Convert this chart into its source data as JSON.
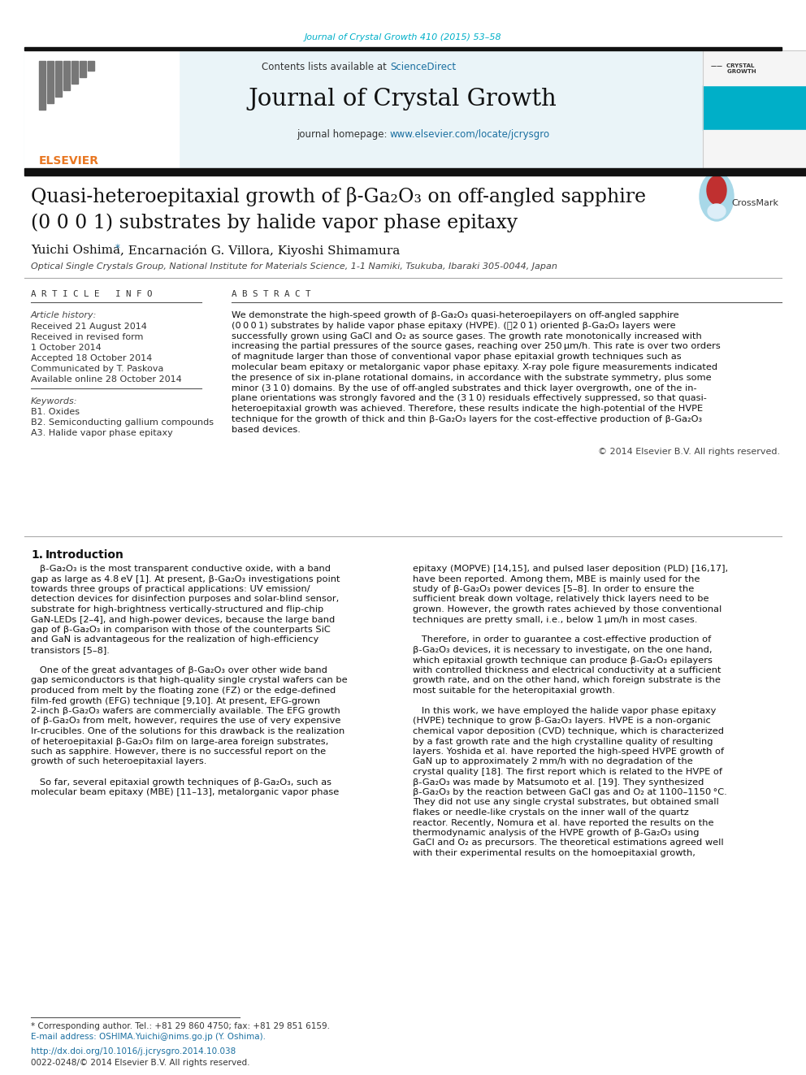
{
  "journal_citation": "Journal of Crystal Growth 410 (2015) 53–58",
  "journal_name": "Journal of Crystal Growth",
  "contents_line": "Contents lists available at ",
  "sciencedirect": "ScienceDirect",
  "journal_homepage_label": "journal homepage: ",
  "journal_url": "www.elsevier.com/locate/jcrysgro",
  "title_line1": "Quasi-heteroepitaxial growth of β-Ga₂O₃ on off-angled sapphire",
  "title_line2": "(0 0 0 1) substrates by halide vapor phase epitaxy",
  "authors_pre": "Yuichi Oshima",
  "authors_post": ", Encarnación G. Villora, Kiyoshi Shimamura",
  "affiliation": "Optical Single Crystals Group, National Institute for Materials Science, 1-1 Namiki, Tsukuba, Ibaraki 305-0044, Japan",
  "article_info_header": "A R T I C L E   I N F O",
  "abstract_header": "A B S T R A C T",
  "article_history_label": "Article history:",
  "received": "Received 21 August 2014",
  "revised": "Received in revised form",
  "revised_date": "1 October 2014",
  "accepted": "Accepted 18 October 2014",
  "communicated": "Communicated by T. Paskova",
  "available": "Available online 28 October 2014",
  "keywords_label": "Keywords:",
  "keyword1": "B1. Oxides",
  "keyword2": "B2. Semiconducting gallium compounds",
  "keyword3": "A3. Halide vapor phase epitaxy",
  "copyright": "© 2014 Elsevier B.V. All rights reserved.",
  "footnote_star": "* Corresponding author. Tel.: +81 29 860 4750; fax: +81 29 851 6159.",
  "footnote_email": "E-mail address: OSHIMA.Yuichi@nims.go.jp (Y. Oshima).",
  "doi_line": "http://dx.doi.org/10.1016/j.jcrysgro.2014.10.038",
  "issn_line": "0022-0248/© 2014 Elsevier B.V. All rights reserved.",
  "bg_header": "#eaf4f8",
  "bg_white": "#ffffff",
  "color_teal": "#00afc8",
  "color_orange": "#e87722",
  "color_blue_link": "#1a6fa0",
  "color_dark": "#111111",
  "color_gray": "#444444",
  "color_mid_gray": "#888888"
}
